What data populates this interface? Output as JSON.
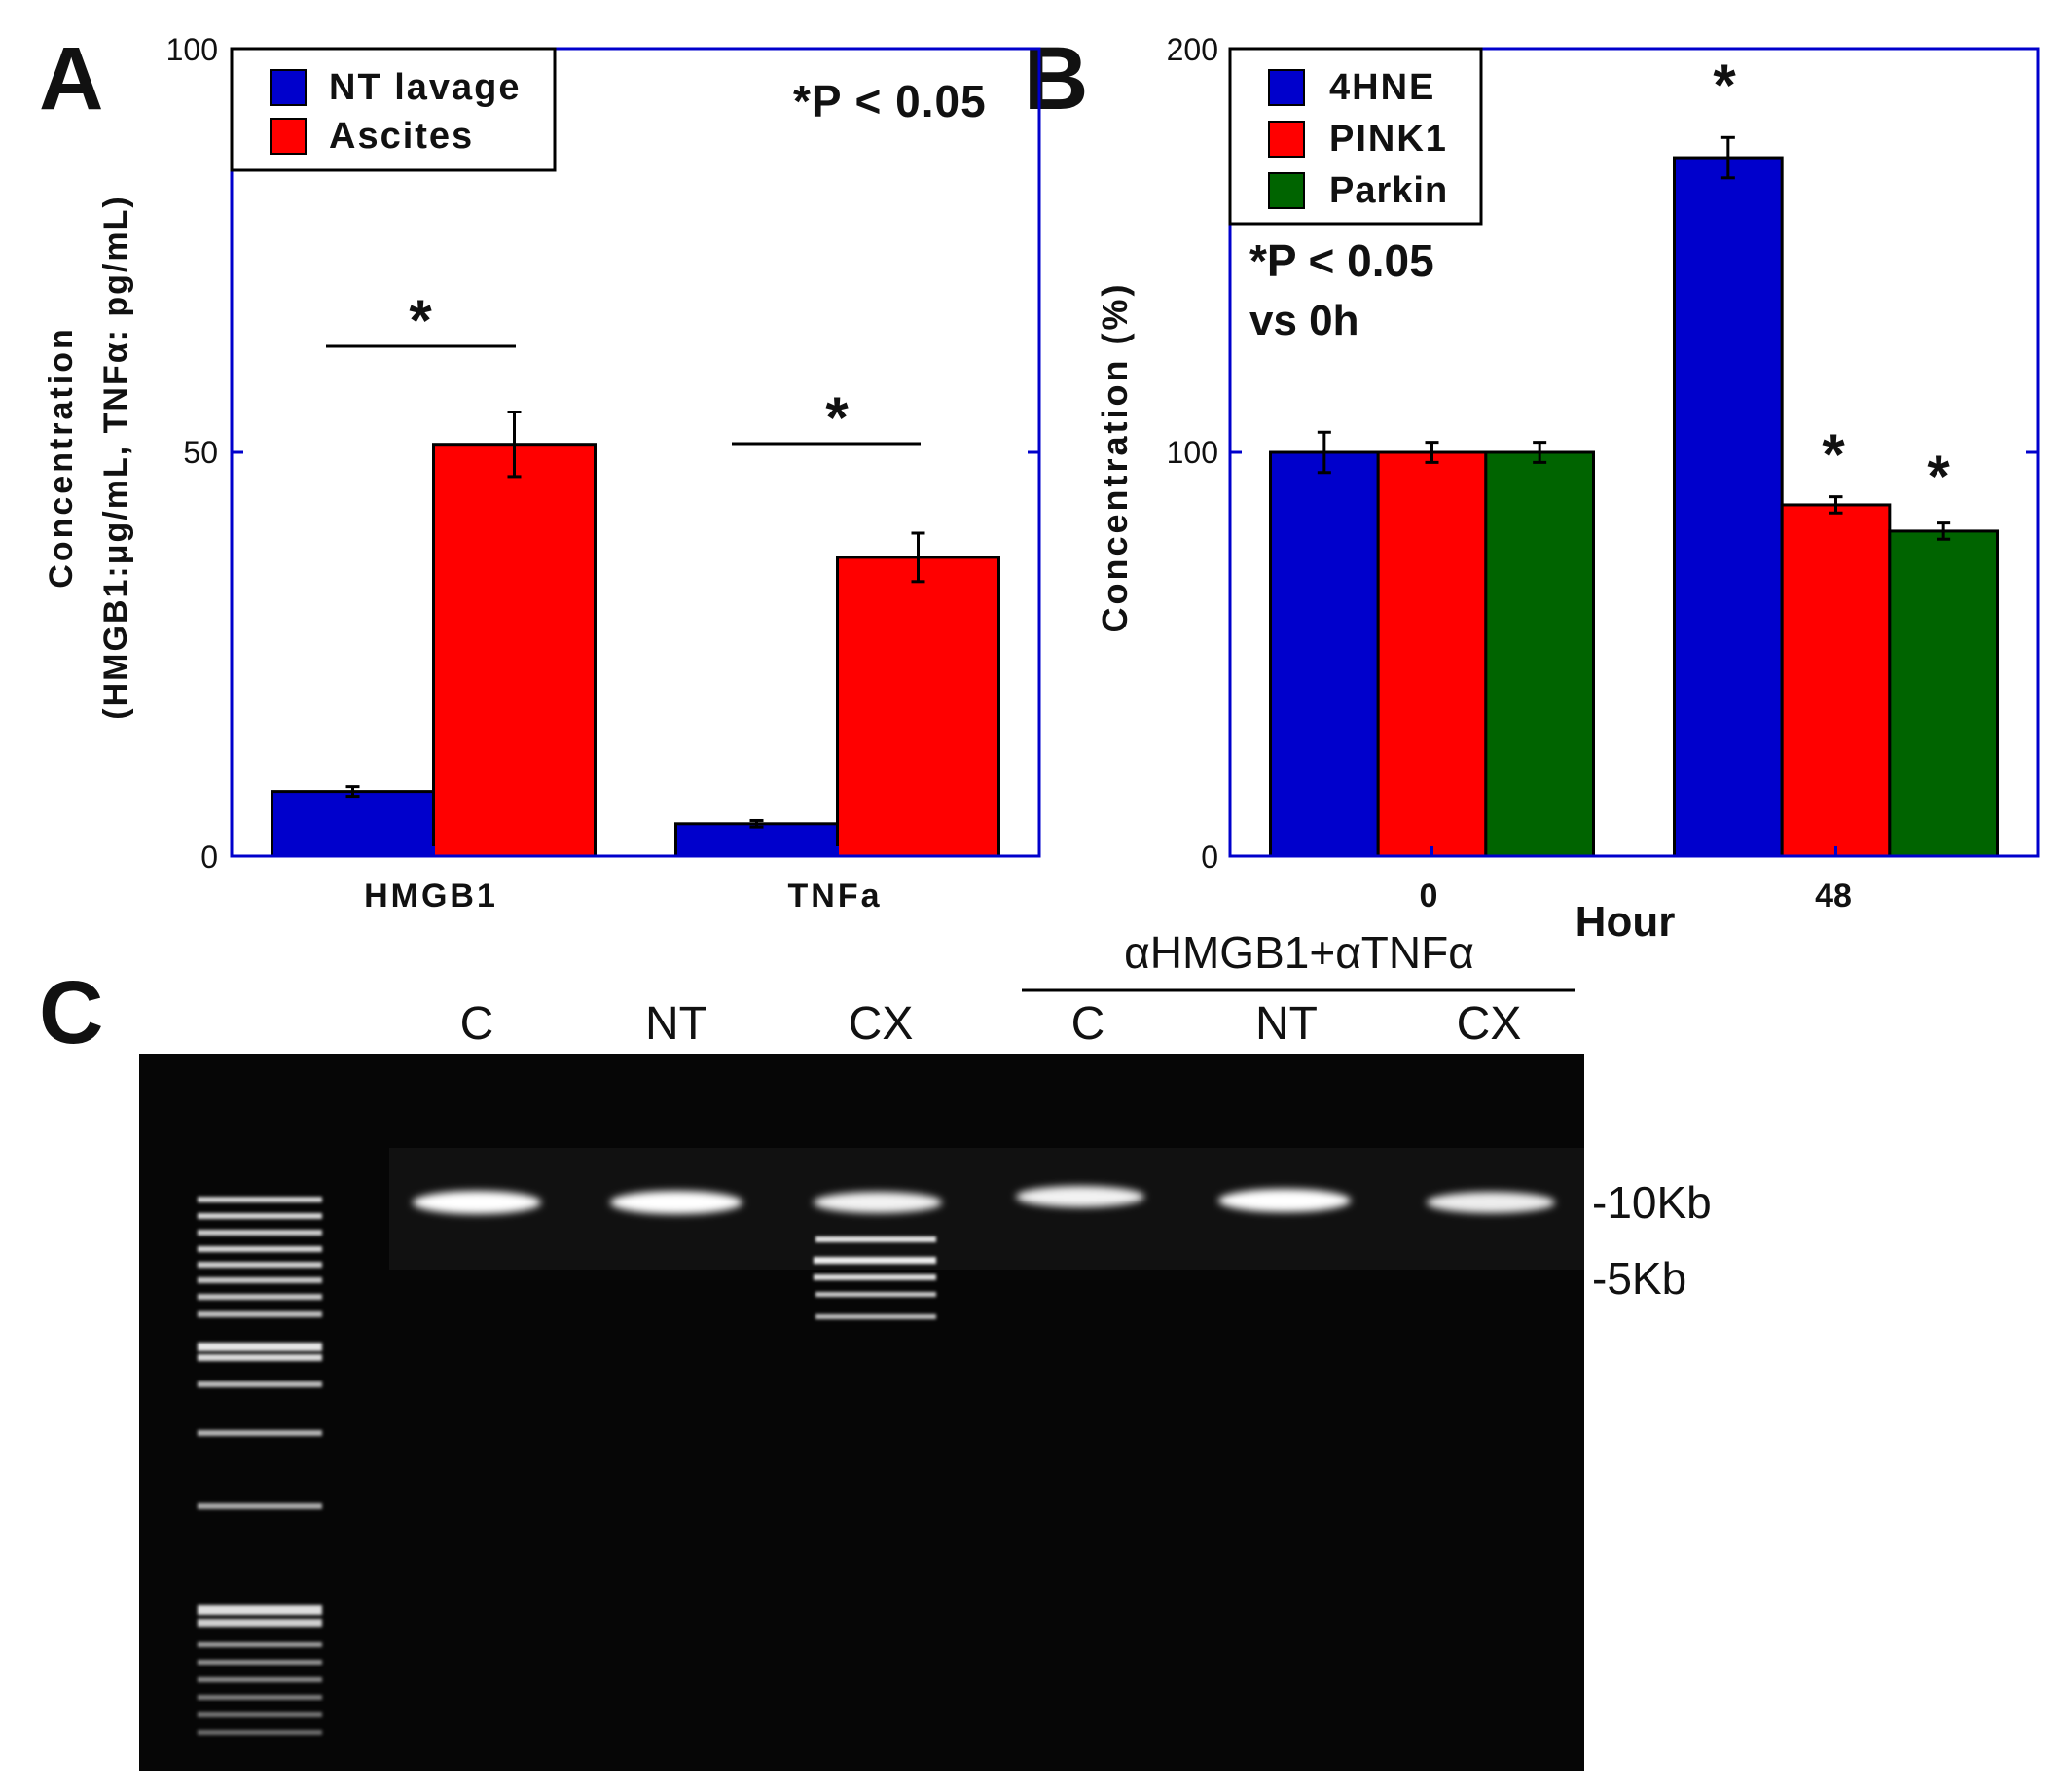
{
  "panels": {
    "a": "A",
    "b": "B",
    "c": "C"
  },
  "chart_data": [
    {
      "type": "bar",
      "categories": [
        "HMGB1",
        "TNFa"
      ],
      "series": [
        {
          "name": "NT lavage",
          "color": "#0000cc",
          "values": [
            8,
            4
          ],
          "errors": [
            0.6,
            0.4
          ]
        },
        {
          "name": "Ascites",
          "color": "#ff0000",
          "values": [
            51,
            37
          ],
          "errors": [
            4,
            3
          ]
        }
      ],
      "ylabel_line1": "Concentration",
      "ylabel_line2": "(HMGB1:μg/mL, TNFα: pg/mL)",
      "yticks": [
        "0",
        "50",
        "100"
      ],
      "ylim": [
        0,
        100
      ],
      "annotation": "*P < 0.05",
      "significance_marks": [
        "*",
        "*"
      ],
      "legend_position": "top-left",
      "frame_color": "#0000cc"
    },
    {
      "type": "bar",
      "categories": [
        "0",
        "48"
      ],
      "series": [
        {
          "name": "4HNE",
          "color": "#0000cc",
          "values": [
            100,
            173
          ],
          "errors": [
            5,
            5
          ]
        },
        {
          "name": "PINK1",
          "color": "#ff0000",
          "values": [
            100,
            87
          ],
          "errors": [
            2.5,
            2
          ]
        },
        {
          "name": "Parkin",
          "color": "#006400",
          "values": [
            100,
            80.5
          ],
          "errors": [
            2.5,
            2
          ]
        }
      ],
      "xlabel": "Hour",
      "ylabel": "Concentration (%)",
      "yticks": [
        "0",
        "100",
        "200"
      ],
      "ylim": [
        0,
        200
      ],
      "annotation_line1": "*P < 0.05",
      "annotation_line2": "vs 0h",
      "significance_marks": [
        "*",
        "*",
        "*"
      ],
      "legend_position": "top-left",
      "frame_color": "#0000cc"
    }
  ],
  "gel": {
    "header": "αHMGB1+αTNFα",
    "lanes": [
      "C",
      "NT",
      "CX",
      "C",
      "NT",
      "CX"
    ],
    "markers": [
      "-10Kb",
      "-5Kb"
    ]
  }
}
